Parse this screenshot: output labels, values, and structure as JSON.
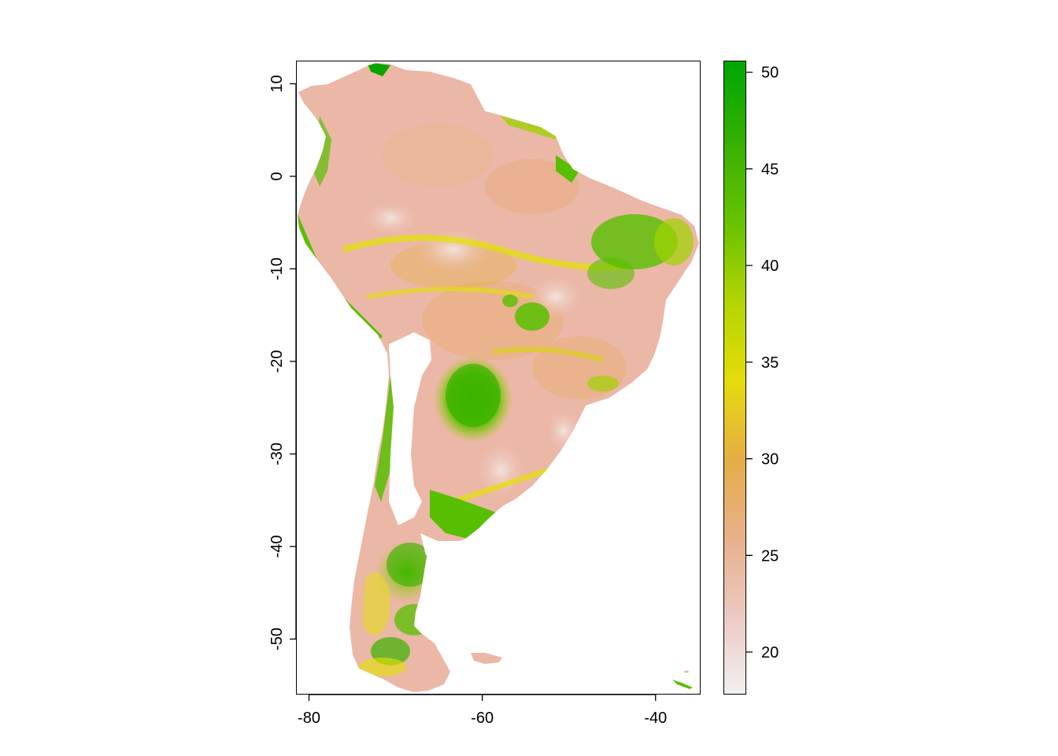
{
  "map": {
    "x_axis": {
      "range": [
        -81.5,
        -34.8
      ],
      "ticks": [
        "-80",
        "-60",
        "-40"
      ],
      "tick_values": [
        -80,
        -60,
        -40
      ]
    },
    "y_axis": {
      "range": [
        -56,
        12.5
      ],
      "ticks": [
        "10",
        "0",
        "-10",
        "-20",
        "-30",
        "-40",
        "-50"
      ],
      "tick_values": [
        10,
        0,
        -10,
        -20,
        -30,
        -40,
        -50
      ]
    },
    "colors": {
      "low": "#f2f0f0",
      "pink": "#ebb7a6",
      "tan": "#e8ae6e",
      "orange": "#e6b13a",
      "yellow": "#e3e300",
      "lime": "#9fd100",
      "green": "#58bf00",
      "dark_green": "#0aa400"
    }
  },
  "legend": {
    "range": [
      17.8,
      50.6
    ],
    "ticks": [
      "20",
      "25",
      "30",
      "35",
      "40",
      "45",
      "50"
    ],
    "tick_values": [
      20,
      25,
      30,
      35,
      40,
      45,
      50
    ],
    "stops": [
      {
        "value": 17.8,
        "color": "#f2f0f0"
      },
      {
        "value": 22,
        "color": "#ebc8bf"
      },
      {
        "value": 26,
        "color": "#e8b089"
      },
      {
        "value": 30,
        "color": "#e6ad45"
      },
      {
        "value": 34,
        "color": "#e5dc0c"
      },
      {
        "value": 38,
        "color": "#b5d500"
      },
      {
        "value": 42,
        "color": "#6bc300"
      },
      {
        "value": 46,
        "color": "#3ab200"
      },
      {
        "value": 50.6,
        "color": "#00a600"
      }
    ]
  }
}
